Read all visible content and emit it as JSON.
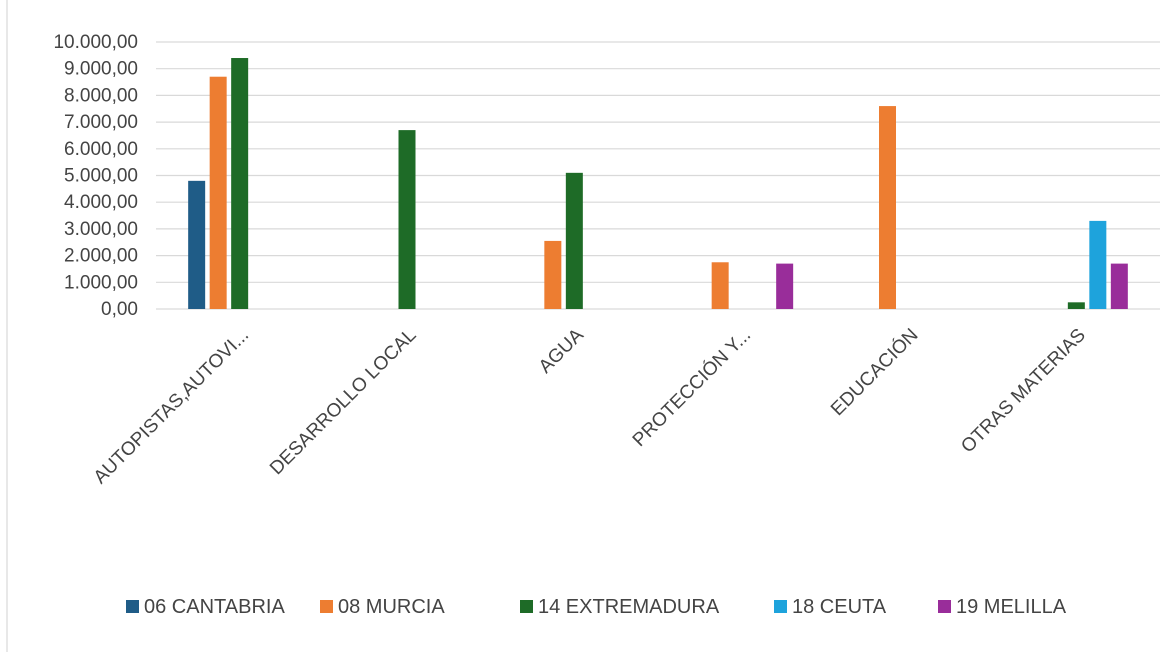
{
  "chart_data": {
    "type": "bar",
    "title": "",
    "xlabel": "",
    "ylabel": "",
    "categories": [
      "AUTOPISTAS,AUTOVI...",
      "DESARROLLO LOCAL",
      "AGUA",
      "PROTECCIÓN Y...",
      "EDUCACIÓN",
      "OTRAS MATERIAS"
    ],
    "ylim": [
      0,
      10000
    ],
    "yticks": [
      "0,00",
      "1.000,00",
      "2.000,00",
      "3.000,00",
      "4.000,00",
      "5.000,00",
      "6.000,00",
      "7.000,00",
      "8.000,00",
      "9.000,00",
      "10.000,00"
    ],
    "grid": true,
    "legend_position": "bottom",
    "series": [
      {
        "name": "06 CANTABRIA",
        "color": "#1f5c87",
        "values": [
          4800,
          0,
          0,
          0,
          0,
          0
        ]
      },
      {
        "name": "08 MURCIA",
        "color": "#ed7d31",
        "values": [
          8700,
          0,
          2550,
          1750,
          7600,
          0
        ]
      },
      {
        "name": "14 EXTREMADURA",
        "color": "#1e6b27",
        "values": [
          9400,
          6700,
          5100,
          0,
          0,
          250
        ]
      },
      {
        "name": "18 CEUTA",
        "color": "#1ea3dc",
        "values": [
          0,
          0,
          0,
          0,
          0,
          3300
        ]
      },
      {
        "name": "19 MELILLA",
        "color": "#992d9a",
        "values": [
          0,
          0,
          0,
          1700,
          0,
          1700
        ]
      }
    ]
  }
}
